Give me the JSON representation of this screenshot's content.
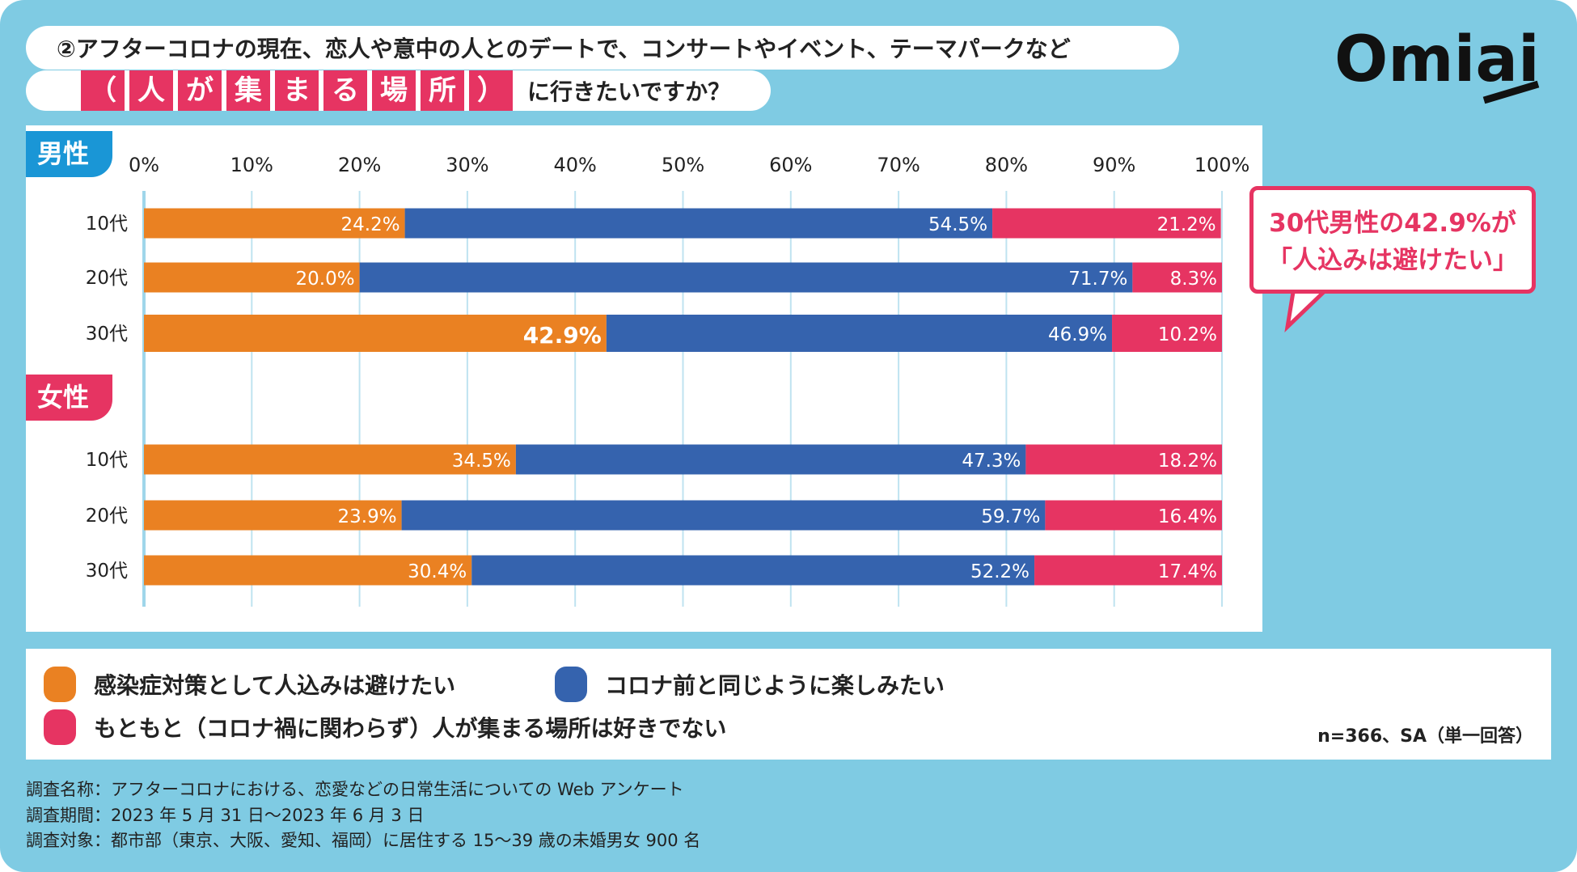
{
  "title": {
    "line1": "②アフターコロナの現在、恋人や意中の人とのデートで、コンサートやイベント、テーマパークなど",
    "highlight": [
      "（",
      "人",
      "が",
      "集",
      "ま",
      "る",
      "場",
      "所",
      "）"
    ],
    "line2_rest": "に行きたいですか？"
  },
  "logo": "Omiai",
  "callout": {
    "line1": "30代男性の42.9%が",
    "line2": "「人込みは避けたい」"
  },
  "chart_data": {
    "type": "bar",
    "orientation": "horizontal",
    "stacked": true,
    "xlim": [
      0,
      100
    ],
    "x_ticks": [
      "0%",
      "10%",
      "20%",
      "30%",
      "40%",
      "50%",
      "60%",
      "70%",
      "80%",
      "90%",
      "100%"
    ],
    "grid": true,
    "groups": [
      {
        "label": "男性",
        "categories": [
          "10代",
          "20代",
          "30代"
        ]
      },
      {
        "label": "女性",
        "categories": [
          "10代",
          "20代",
          "30代"
        ]
      }
    ],
    "series": [
      {
        "name": "感染症対策として人込みは避けたい",
        "color": "#ea8122",
        "values": [
          24.2,
          20.0,
          42.9,
          34.5,
          23.9,
          30.4
        ]
      },
      {
        "name": "コロナ前と同じように楽しみたい",
        "color": "#3563ae",
        "values": [
          54.5,
          71.7,
          46.9,
          47.3,
          59.7,
          52.2
        ]
      },
      {
        "name": "もともと（コロナ禍に関わらず）人が集まる場所は好きでない",
        "color": "#e63462",
        "values": [
          21.2,
          8.3,
          10.2,
          18.2,
          16.4,
          17.4
        ]
      }
    ],
    "highlight": {
      "group": "男性",
      "category": "30代",
      "series": 0
    },
    "legend_position": "bottom"
  },
  "note": "n=366、SA（単一回答）",
  "footer": [
    "調査名称：アフターコロナにおける、恋愛などの日常生活についての Web アンケート",
    "調査期間：2023 年 5 月 31 日〜2023 年 6 月 3 日",
    "調査対象：都市部（東京、大阪、愛知、福岡）に居住する 15〜39 歳の未婚男女 900 名"
  ]
}
